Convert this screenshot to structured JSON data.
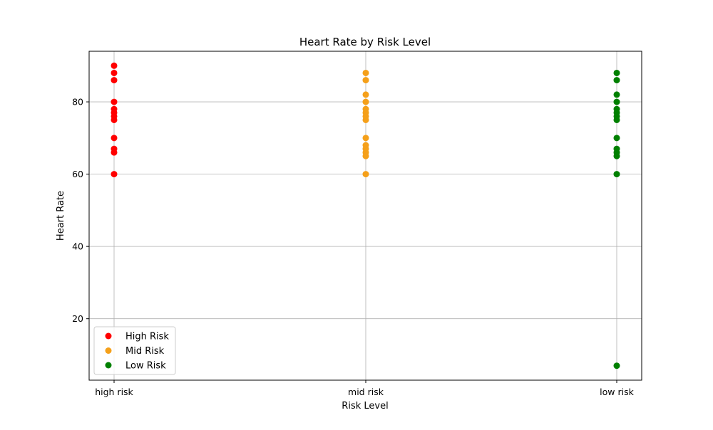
{
  "chart_data": {
    "type": "scatter",
    "title": "Heart Rate by Risk Level",
    "xlabel": "Risk Level",
    "ylabel": "Heart Rate",
    "categories": [
      "high risk",
      "mid risk",
      "low risk"
    ],
    "ylim": [
      3,
      94
    ],
    "yticks": [
      20,
      40,
      60,
      80
    ],
    "grid": true,
    "legend_location": "lower-left",
    "series": [
      {
        "name": "High Risk",
        "color": "#ff0000",
        "category": "high risk",
        "values": [
          90,
          88,
          86,
          80,
          78,
          77,
          76,
          75,
          70,
          67,
          66,
          60
        ]
      },
      {
        "name": "Mid Risk",
        "color": "#f5a01a",
        "category": "mid risk",
        "values": [
          88,
          86,
          82,
          80,
          78,
          77,
          76,
          75,
          70,
          68,
          67,
          66,
          65,
          60
        ]
      },
      {
        "name": "Low Risk",
        "color": "#008000",
        "category": "low risk",
        "values": [
          88,
          86,
          82,
          80,
          78,
          77,
          76,
          75,
          70,
          67,
          66,
          65,
          60,
          7
        ]
      }
    ]
  }
}
